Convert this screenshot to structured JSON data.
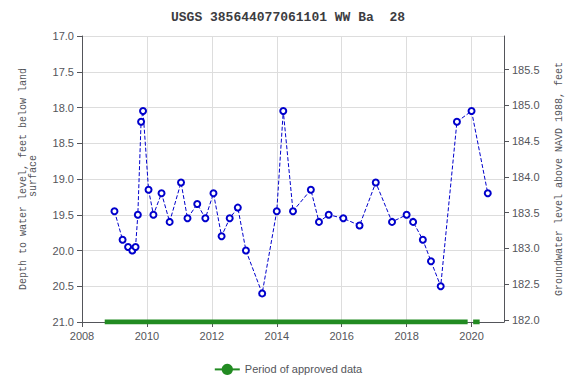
{
  "chart_data": {
    "type": "line",
    "title": "USGS 385644077061101 WW Ba  28",
    "ylabel": "Depth to water level, feet below land\n surface",
    "y2label": "Groundwater level above NAVD 1988, feet",
    "xlim": [
      2008,
      2021
    ],
    "xticks": [
      2008,
      2010,
      2012,
      2014,
      2016,
      2018,
      2020
    ],
    "ylim": [
      21.0,
      17.0
    ],
    "yticks": [
      {
        "value": 17.0,
        "label": "17.0"
      },
      {
        "value": 17.5,
        "label": "17.5"
      },
      {
        "value": 18.0,
        "label": "18.0"
      },
      {
        "value": 18.5,
        "label": "18.5"
      },
      {
        "value": 19.0,
        "label": "19.0"
      },
      {
        "value": 19.5,
        "label": "19.5"
      },
      {
        "value": 20.0,
        "label": "20.0"
      },
      {
        "value": 20.5,
        "label": "20.5"
      },
      {
        "value": 21.0,
        "label": "21.0"
      }
    ],
    "y2lim": [
      181.97,
      185.97
    ],
    "y2ticks": [
      {
        "value": 182.0,
        "label": "182.0"
      },
      {
        "value": 182.5,
        "label": "182.5"
      },
      {
        "value": 183.0,
        "label": "183.0"
      },
      {
        "value": 183.5,
        "label": "183.5"
      },
      {
        "value": 184.0,
        "label": "184.0"
      },
      {
        "value": 184.5,
        "label": "184.5"
      },
      {
        "value": 185.0,
        "label": "185.0"
      },
      {
        "value": 185.5,
        "label": "185.5"
      }
    ],
    "grid": true,
    "legend": "bottom",
    "color": "#0000cc",
    "marker": "circle",
    "line_style": "dashed",
    "x": [
      2009.0,
      2009.25,
      2009.42,
      2009.55,
      2009.65,
      2009.72,
      2009.82,
      2009.88,
      2010.05,
      2010.2,
      2010.45,
      2010.7,
      2011.05,
      2011.25,
      2011.55,
      2011.8,
      2012.05,
      2012.3,
      2012.55,
      2012.8,
      2013.05,
      2013.55,
      2014.0,
      2014.2,
      2014.5,
      2015.05,
      2015.3,
      2015.6,
      2016.05,
      2016.55,
      2017.05,
      2017.55,
      2018.0,
      2018.2,
      2018.5,
      2018.75,
      2019.05,
      2019.55,
      2020.0,
      2020.5
    ],
    "values": [
      19.45,
      19.85,
      19.95,
      20.0,
      19.95,
      19.5,
      18.2,
      18.05,
      19.15,
      19.5,
      19.2,
      19.6,
      19.05,
      19.55,
      19.35,
      19.55,
      19.2,
      19.8,
      19.55,
      19.4,
      20.0,
      20.6,
      19.45,
      18.05,
      19.45,
      19.15,
      19.6,
      19.5,
      19.55,
      19.65,
      19.05,
      19.6,
      19.5,
      19.6,
      19.85,
      20.15,
      20.5,
      18.2,
      18.05,
      19.2
    ],
    "approved_periods": {
      "name": "Period of approved data",
      "color": "#228B22",
      "y": 21.0,
      "ranges": [
        [
          2008.7,
          2019.88
        ],
        [
          2020.05,
          2020.25
        ]
      ]
    }
  }
}
